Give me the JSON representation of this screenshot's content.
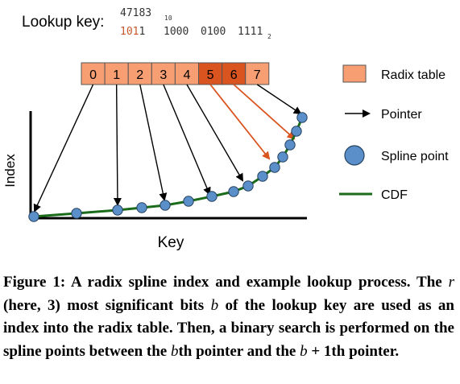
{
  "lookup": {
    "label": "Lookup key:",
    "decimal": "47183",
    "decimal_base": "10",
    "binary_highlight": "101",
    "binary_rest_first": "1",
    "binary_groups": [
      "1000",
      "0100",
      "1111"
    ],
    "binary_base": "2"
  },
  "radix_table": {
    "cells": [
      "0",
      "1",
      "2",
      "3",
      "4",
      "5",
      "6",
      "7"
    ],
    "highlighted": [
      5,
      6
    ]
  },
  "axes": {
    "ylabel": "Index",
    "xlabel": "Key"
  },
  "legend": [
    {
      "label": "Radix table",
      "kind": "box"
    },
    {
      "label": "Pointer",
      "kind": "arrow"
    },
    {
      "label": "Spline point",
      "kind": "circle"
    },
    {
      "label": "CDF",
      "kind": "line"
    }
  ],
  "colors": {
    "cell_fill": "#f79e73",
    "cell_highlight": "#d9541f",
    "highlight_text": "#c8582a",
    "pointer_highlight": "#d9541f",
    "spline_point": "#5b8fc9",
    "cdf": "#1a6b1a"
  },
  "caption": {
    "lead": "Figure 1: A radix spline index and example lookup process. The ",
    "r": "r",
    "mid1": " (here, 3) most significant bits ",
    "b1": "b",
    "mid2": " of the lookup key are used as an index into the radix table. Then, a binary search is performed on the spline points between the ",
    "b2": "b",
    "mid3": "th pointer and the ",
    "b3": "b",
    "tail": " + 1th pointer."
  }
}
